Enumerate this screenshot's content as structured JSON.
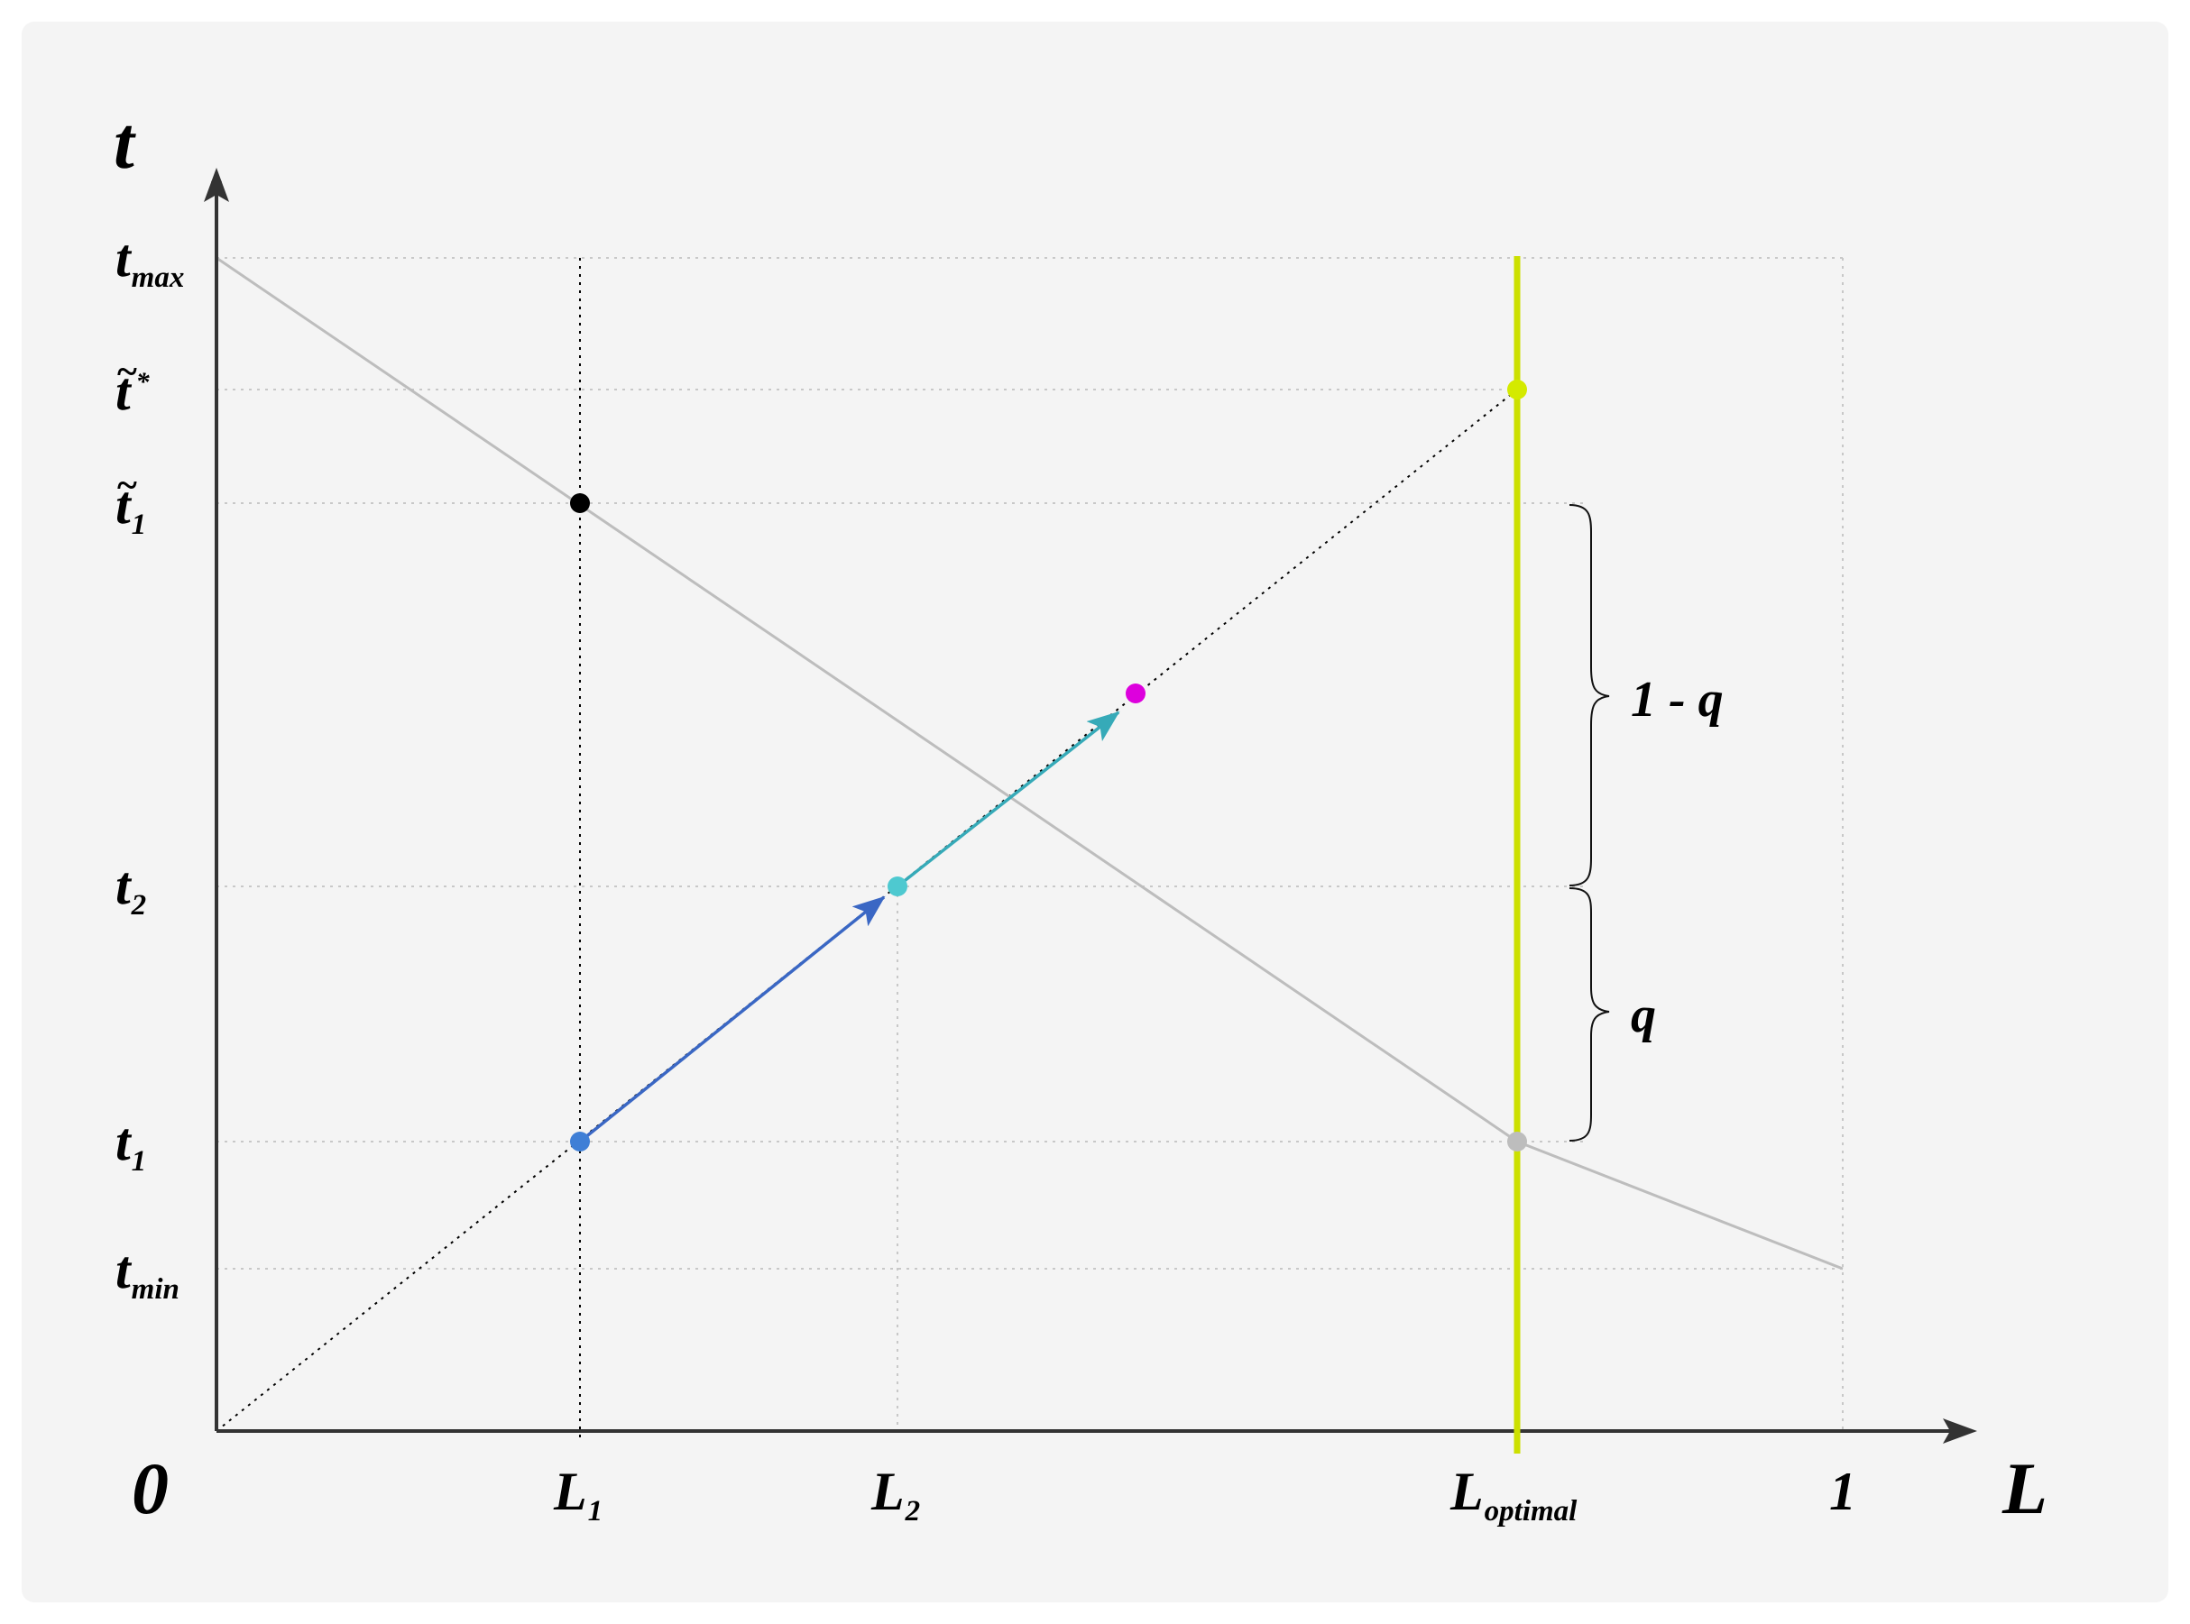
{
  "axes": {
    "y_name": "t",
    "x_name": "L",
    "origin": "0"
  },
  "y_ticks": {
    "t_max": {
      "base": "t",
      "sub": "max"
    },
    "t_star": {
      "base": "t",
      "tilde": "~",
      "sup": "*"
    },
    "t_tilde_1": {
      "base": "t",
      "tilde": "~",
      "sub": "1"
    },
    "t_2": {
      "base": "t",
      "sub": "2"
    },
    "t_1": {
      "base": "t",
      "sub": "1"
    },
    "t_min": {
      "base": "t",
      "sub": "min"
    }
  },
  "x_ticks": {
    "L_1": {
      "base": "L",
      "sub": "1"
    },
    "L_2": {
      "base": "L",
      "sub": "2"
    },
    "L_optimal": {
      "base": "L",
      "sub": "optimal"
    },
    "one": "1"
  },
  "braces": {
    "upper": "1 - q",
    "lower": "q"
  },
  "colors": {
    "card_background": "#f4f4f4",
    "axis": "#333333",
    "decreasing_line": "#bdbdbd",
    "optimal_line": "#cce000",
    "arrow_1": "#3a67c4",
    "arrow_2": "#36aab8",
    "point_t1": "#3f7fd6",
    "point_t2": "#4ec9d0",
    "point_magenta": "#dd00dd",
    "point_black": "#000000",
    "point_gray": "#bdbdbd",
    "point_yellow": "#d4ea00"
  }
}
